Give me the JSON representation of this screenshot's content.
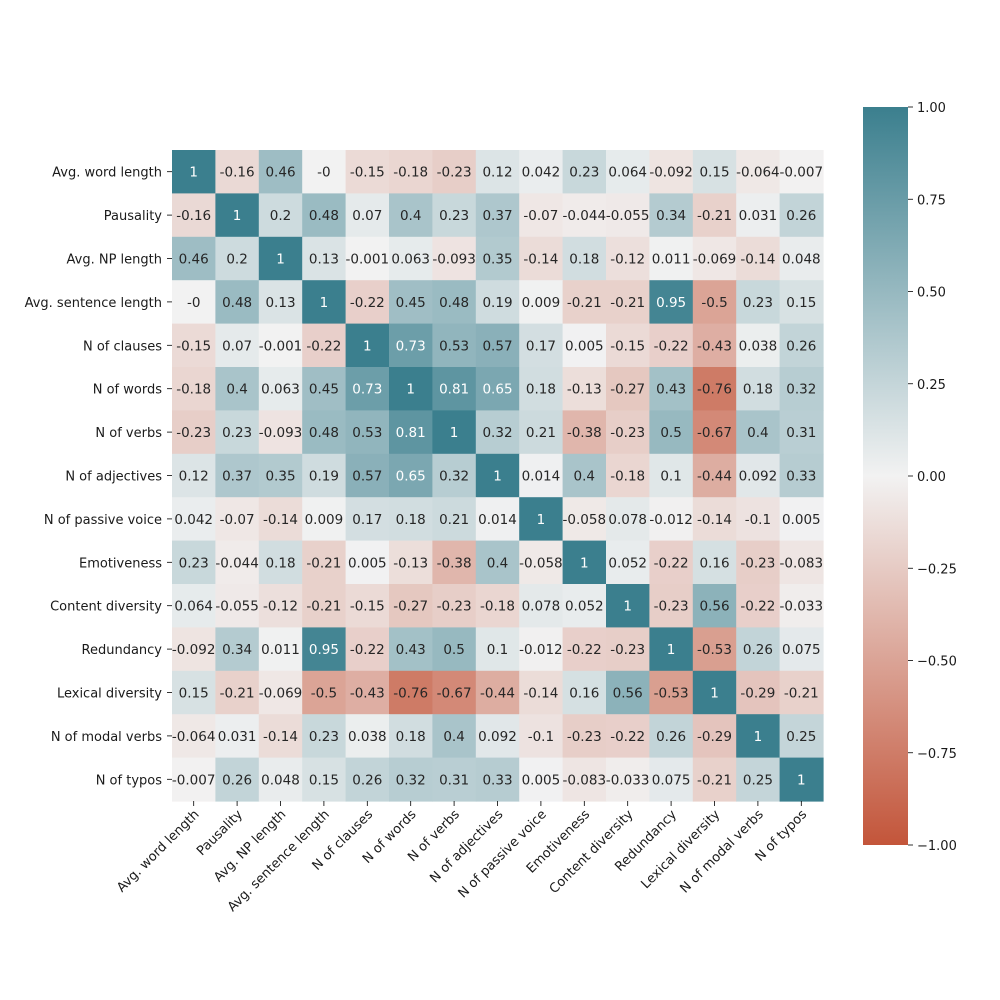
{
  "chart_data": {
    "type": "heatmap",
    "title": "",
    "xlabel": "",
    "ylabel": "",
    "labels": [
      "Avg. word length",
      "Pausality",
      "Avg. NP length",
      "Avg. sentence length",
      "N of clauses",
      "N of words",
      "N of verbs",
      "N of adjectives",
      "N of passive voice",
      "Emotiveness",
      "Content diversity",
      "Redundancy",
      "Lexical diversity",
      "N of modal verbs",
      "N of typos"
    ],
    "matrix": [
      [
        1,
        -0.16,
        0.46,
        0,
        -0.15,
        -0.18,
        -0.23,
        0.12,
        0.042,
        0.23,
        0.064,
        -0.092,
        0.15,
        -0.064,
        -0.007
      ],
      [
        -0.16,
        1,
        0.2,
        0.48,
        0.07,
        0.4,
        0.23,
        0.37,
        -0.07,
        -0.044,
        -0.055,
        0.34,
        -0.21,
        0.031,
        0.26
      ],
      [
        0.46,
        0.2,
        1,
        0.13,
        -0.001,
        0.063,
        -0.093,
        0.35,
        -0.14,
        0.18,
        -0.12,
        0.011,
        -0.069,
        -0.14,
        0.048
      ],
      [
        0,
        0.48,
        0.13,
        1,
        -0.22,
        0.45,
        0.48,
        0.19,
        0.009,
        -0.21,
        -0.21,
        0.95,
        -0.5,
        0.23,
        0.15
      ],
      [
        -0.15,
        0.07,
        -0.001,
        -0.22,
        1,
        0.73,
        0.53,
        0.57,
        0.17,
        0.005,
        -0.15,
        -0.22,
        -0.43,
        0.038,
        0.26
      ],
      [
        -0.18,
        0.4,
        0.063,
        0.45,
        0.73,
        1,
        0.81,
        0.65,
        0.18,
        -0.13,
        -0.27,
        0.43,
        -0.76,
        0.18,
        0.32
      ],
      [
        -0.23,
        0.23,
        -0.093,
        0.48,
        0.53,
        0.81,
        1,
        0.32,
        0.21,
        -0.38,
        -0.23,
        0.5,
        -0.67,
        0.4,
        0.31
      ],
      [
        0.12,
        0.37,
        0.35,
        0.19,
        0.57,
        0.65,
        0.32,
        1,
        0.014,
        0.4,
        -0.18,
        0.1,
        -0.44,
        0.092,
        0.33
      ],
      [
        0.042,
        -0.07,
        -0.14,
        0.009,
        0.17,
        0.18,
        0.21,
        0.014,
        1,
        -0.058,
        0.078,
        -0.012,
        -0.14,
        -0.1,
        0.005
      ],
      [
        0.23,
        -0.044,
        0.18,
        -0.21,
        0.005,
        -0.13,
        -0.38,
        0.4,
        -0.058,
        1,
        0.052,
        -0.22,
        0.16,
        -0.23,
        -0.083
      ],
      [
        0.064,
        -0.055,
        -0.12,
        -0.21,
        -0.15,
        -0.27,
        -0.23,
        -0.18,
        0.078,
        0.052,
        1,
        -0.23,
        0.56,
        -0.22,
        -0.033
      ],
      [
        -0.092,
        0.34,
        0.011,
        0.95,
        -0.22,
        0.43,
        0.5,
        0.1,
        -0.012,
        -0.22,
        -0.23,
        1,
        -0.53,
        0.26,
        0.075
      ],
      [
        0.15,
        -0.21,
        -0.069,
        -0.5,
        -0.43,
        -0.76,
        -0.67,
        -0.44,
        -0.14,
        0.16,
        0.56,
        -0.53,
        1,
        -0.29,
        -0.21
      ],
      [
        -0.064,
        0.031,
        -0.14,
        0.23,
        0.038,
        0.18,
        0.4,
        0.092,
        -0.1,
        -0.23,
        -0.22,
        0.26,
        -0.29,
        1,
        0.25
      ],
      [
        -0.007,
        0.26,
        0.048,
        0.15,
        0.26,
        0.32,
        0.31,
        0.33,
        0.005,
        -0.083,
        -0.033,
        0.075,
        -0.21,
        0.25,
        1
      ]
    ],
    "vmin": -1,
    "vmax": 1,
    "colorbar_ticks": [
      "1.00",
      "0.75",
      "0.50",
      "0.25",
      "0.00",
      "−0.25",
      "−0.50",
      "−0.75",
      "−1.00"
    ],
    "colorbar_values": [
      1,
      0.75,
      0.5,
      0.25,
      0,
      -0.25,
      -0.5,
      -0.75,
      -1
    ],
    "colormap": {
      "negative": "#c3553a",
      "center": "#f2f2f2",
      "positive": "#3b7f8e"
    },
    "grid": false,
    "legend": "colorbar-right"
  }
}
